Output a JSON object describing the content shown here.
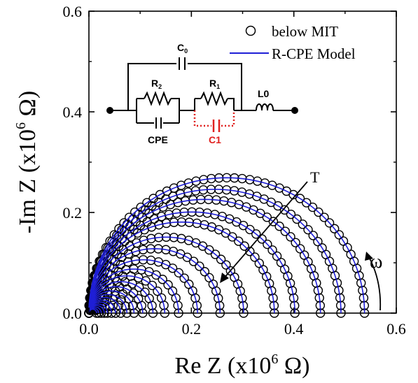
{
  "chart_data": {
    "type": "scatter",
    "xlabel": {
      "prefix": "Re Z (x10",
      "exp": "6",
      "suffix": " Ω)"
    },
    "ylabel": {
      "prefix": "-Im Z (x10",
      "exp": "6",
      "suffix": " Ω)"
    },
    "xlim": [
      0.0,
      0.6
    ],
    "ylim": [
      0.0,
      0.6
    ],
    "xticks": [
      "0.0",
      "0.2",
      "0.4",
      "0.6"
    ],
    "yticks": [
      "0.0",
      "0.2",
      "0.4",
      "0.6"
    ],
    "grid": false,
    "legend": {
      "placement": "top-right",
      "entries": [
        {
          "label": "below MIT",
          "marker": "open-circle",
          "color": "#000000"
        },
        {
          "label": "R-CPE Model",
          "marker": "line",
          "color": "#1f1fd6"
        }
      ]
    },
    "series": [
      {
        "diameter": 0.538
      },
      {
        "diameter": 0.492
      },
      {
        "diameter": 0.452
      },
      {
        "diameter": 0.402
      },
      {
        "diameter": 0.362
      },
      {
        "diameter": 0.302
      },
      {
        "diameter": 0.256
      },
      {
        "diameter": 0.212
      },
      {
        "diameter": 0.175
      },
      {
        "diameter": 0.148
      },
      {
        "diameter": 0.125
      },
      {
        "diameter": 0.105
      },
      {
        "diameter": 0.088
      },
      {
        "diameter": 0.074
      },
      {
        "diameter": 0.062
      },
      {
        "diameter": 0.052
      },
      {
        "diameter": 0.044
      },
      {
        "diameter": 0.036
      },
      {
        "diameter": 0.03
      },
      {
        "diameter": 0.024
      },
      {
        "diameter": 0.019
      },
      {
        "diameter": 0.015
      }
    ],
    "annotations": {
      "temperature_label": "T",
      "frequency_label": "ω"
    },
    "inset_circuit": {
      "labels": {
        "c0": {
          "main": "C",
          "sub": "0"
        },
        "r2": {
          "main": "R",
          "sub": "2"
        },
        "r1": {
          "main": "R",
          "sub": "1"
        },
        "l0": "L0",
        "cpe": "CPE",
        "c1": "C1"
      },
      "c1_color": "#e0201e"
    }
  }
}
